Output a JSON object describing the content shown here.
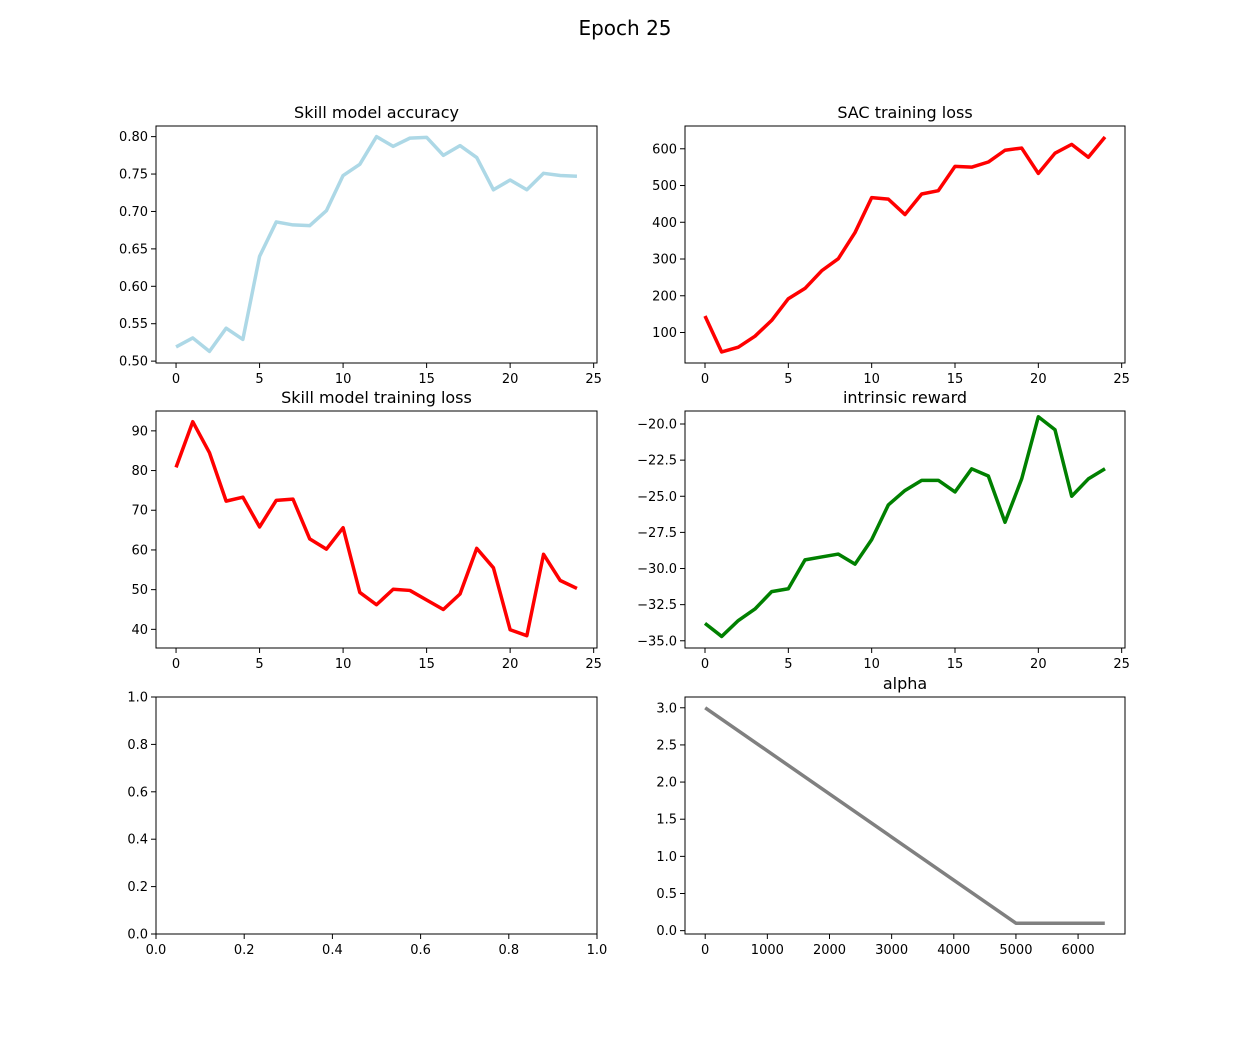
{
  "figure": {
    "title": "Epoch 25"
  },
  "chart_data": [
    {
      "id": "acc",
      "type": "line",
      "title": "Skill model accuracy",
      "xlim": [
        -1.2,
        25.2
      ],
      "ylim": [
        0.4975,
        0.8142
      ],
      "xticks": [
        0,
        5,
        10,
        15,
        20,
        25
      ],
      "yticks": [
        0.5,
        0.55,
        0.6,
        0.65,
        0.7,
        0.75,
        0.8
      ],
      "ytick_decimals": 2,
      "color": "#add8e6",
      "x": [
        0,
        1,
        2,
        3,
        4,
        5,
        6,
        7,
        8,
        9,
        10,
        11,
        12,
        13,
        14,
        15,
        16,
        17,
        18,
        19,
        20,
        21,
        22,
        23,
        24
      ],
      "y": [
        0.519,
        0.531,
        0.513,
        0.544,
        0.529,
        0.64,
        0.686,
        0.682,
        0.681,
        0.701,
        0.748,
        0.763,
        0.8,
        0.787,
        0.798,
        0.799,
        0.775,
        0.788,
        0.772,
        0.729,
        0.742,
        0.729,
        0.751,
        0.748,
        0.747
      ]
    },
    {
      "id": "sac",
      "type": "line",
      "title": "SAC training loss",
      "xlim": [
        -1.2,
        25.2
      ],
      "ylim": [
        17,
        662
      ],
      "xticks": [
        0,
        5,
        10,
        15,
        20,
        25
      ],
      "yticks": [
        100,
        200,
        300,
        400,
        500,
        600
      ],
      "ytick_decimals": 0,
      "color": "#ff0000",
      "x": [
        0,
        1,
        2,
        3,
        4,
        5,
        6,
        7,
        8,
        9,
        10,
        11,
        12,
        13,
        14,
        15,
        16,
        17,
        18,
        19,
        20,
        21,
        22,
        23,
        24
      ],
      "y": [
        145,
        47,
        60,
        90,
        133,
        192,
        220,
        268,
        301,
        372,
        467,
        463,
        421,
        477,
        486,
        552,
        550,
        564,
        596,
        602,
        533,
        588,
        612,
        577,
        632
      ]
    },
    {
      "id": "skillloss",
      "type": "line",
      "title": "Skill model training loss",
      "xlim": [
        -1.2,
        25.2
      ],
      "ylim": [
        35.3,
        95.0
      ],
      "xticks": [
        0,
        5,
        10,
        15,
        20,
        25
      ],
      "yticks": [
        40,
        50,
        60,
        70,
        80,
        90
      ],
      "ytick_decimals": 0,
      "color": "#ff0000",
      "x": [
        0,
        1,
        2,
        3,
        4,
        5,
        6,
        7,
        8,
        9,
        10,
        11,
        12,
        13,
        14,
        15,
        16,
        17,
        18,
        19,
        20,
        21,
        22,
        23,
        24
      ],
      "y": [
        80.8,
        92.3,
        84.5,
        72.3,
        73.3,
        65.8,
        72.5,
        72.8,
        62.8,
        60.2,
        65.6,
        49.3,
        46.2,
        50.1,
        49.8,
        47.4,
        45.0,
        48.9,
        60.4,
        55.5,
        39.9,
        38.4,
        58.9,
        52.3,
        50.3
      ]
    },
    {
      "id": "reward",
      "type": "line",
      "title": "intrinsic reward",
      "xlim": [
        -1.2,
        25.2
      ],
      "ylim": [
        -35.5,
        -19.1
      ],
      "xticks": [
        0,
        5,
        10,
        15,
        20,
        25
      ],
      "yticks": [
        -35.0,
        -32.5,
        -30.0,
        -27.5,
        -25.0,
        -22.5,
        -20.0
      ],
      "ytick_decimals": 1,
      "color": "#008000",
      "x": [
        0,
        1,
        2,
        3,
        4,
        5,
        6,
        7,
        8,
        9,
        10,
        11,
        12,
        13,
        14,
        15,
        16,
        17,
        18,
        19,
        20,
        21,
        22,
        23,
        24
      ],
      "y": [
        -33.8,
        -34.7,
        -33.6,
        -32.8,
        -31.6,
        -31.4,
        -29.4,
        -29.2,
        -29.0,
        -29.7,
        -28.0,
        -25.6,
        -24.6,
        -23.9,
        -23.9,
        -24.7,
        -23.1,
        -23.6,
        -26.8,
        -23.8,
        -19.5,
        -20.4,
        -25.0,
        -23.8,
        -23.1
      ]
    },
    {
      "id": "empty",
      "type": "line",
      "title": "",
      "xlim": [
        0,
        1
      ],
      "ylim": [
        0,
        1
      ],
      "xticks": [
        0.0,
        0.2,
        0.4,
        0.6,
        0.8,
        1.0
      ],
      "xtick_decimals": 1,
      "yticks": [
        0.0,
        0.2,
        0.4,
        0.6,
        0.8,
        1.0
      ],
      "ytick_decimals": 1,
      "x": [],
      "y": []
    },
    {
      "id": "alpha",
      "type": "line",
      "title": "alpha",
      "xlim": [
        -325,
        6755
      ],
      "ylim": [
        -0.045,
        3.145
      ],
      "xticks": [
        0,
        1000,
        2000,
        3000,
        4000,
        5000,
        6000
      ],
      "yticks": [
        0.0,
        0.5,
        1.0,
        1.5,
        2.0,
        2.5,
        3.0
      ],
      "ytick_decimals": 1,
      "color": "#808080",
      "x": [
        0,
        5000,
        6430
      ],
      "y": [
        3.0,
        0.1,
        0.1
      ]
    }
  ]
}
